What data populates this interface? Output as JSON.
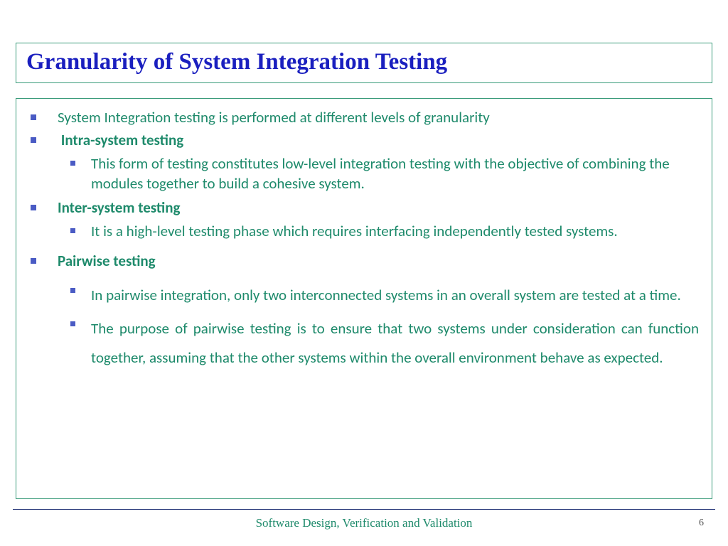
{
  "title": "Granularity of System Integration Testing",
  "items": {
    "intro": "System Integration testing is performed at different levels of granularity",
    "intra_h": "Intra-system testing",
    "intra_d": "This form of testing constitutes low-level integration testing with the objective of combining the modules together to build a cohesive system.",
    "inter_h": "Inter-system testing",
    "inter_d": "It is a high-level testing phase which requires interfacing independently tested systems.",
    "pair_h": "Pairwise testing",
    "pair_d1": "In pairwise integration, only two interconnected systems in an overall system are tested at a time.",
    "pair_d2": "The purpose of pairwise testing is to ensure that two systems under consideration can function together, assuming that the other systems within the overall environment behave as expected."
  },
  "footer": "Software Design, Verification and Validation",
  "page": "6"
}
